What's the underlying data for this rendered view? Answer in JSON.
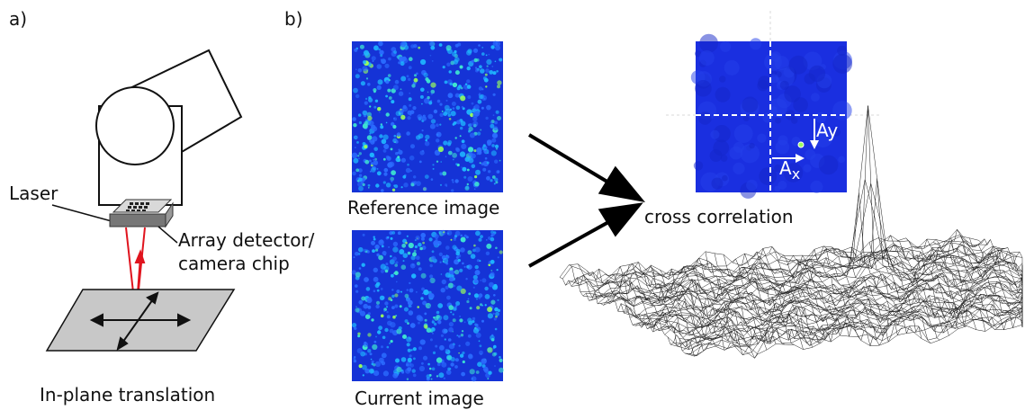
{
  "panel_a": {
    "label": "a)",
    "laser_label": "Laser",
    "detector_label_line1": "Array detector/",
    "detector_label_line2": "camera chip",
    "translation_label": "In-plane translation"
  },
  "panel_b": {
    "label": "b)",
    "reference_label": "Reference image",
    "current_label": "Current image",
    "cross_correlation_label": "cross correlation",
    "ay_label": "Ay",
    "ax_label": "Ax",
    "ax_sub": "x",
    "ax_main": "A",
    "speckle_bg_color": "#1533d6",
    "speckle_hot_colors": [
      "#2b6cff",
      "#1fb6ff",
      "#3ee6d0",
      "#9aff5a"
    ],
    "correlation_bg_color": "#1a2fe0"
  }
}
